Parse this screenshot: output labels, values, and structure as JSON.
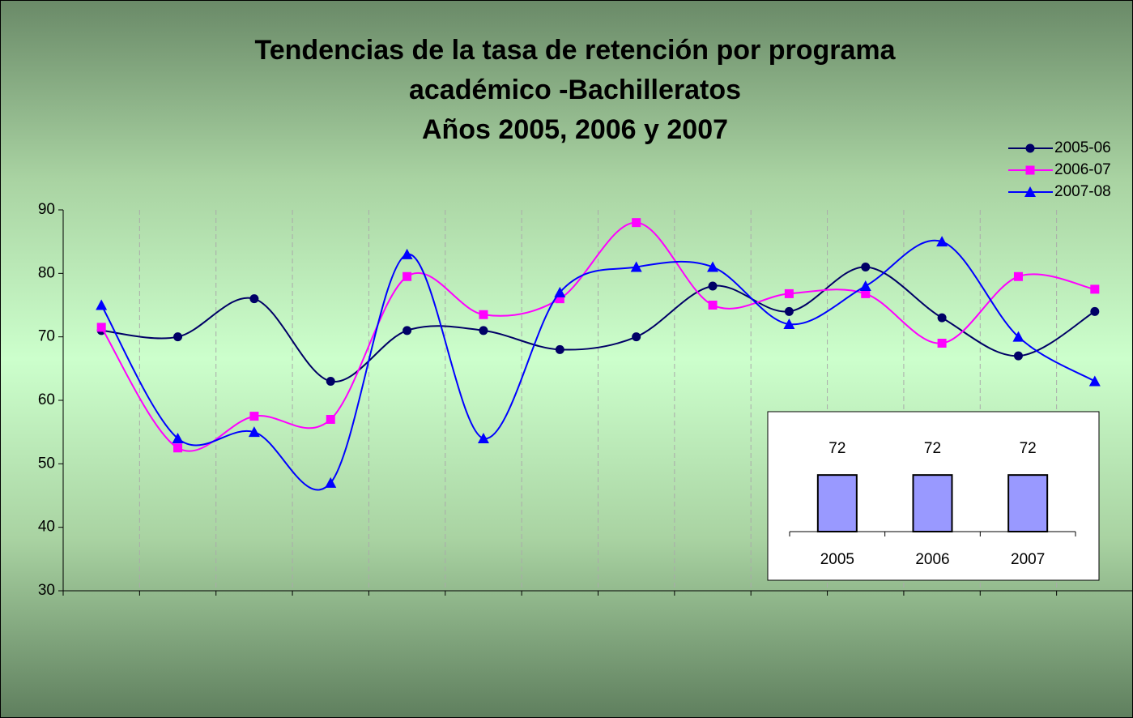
{
  "chart_data": [
    {
      "type": "line",
      "title": [
        "Tendencias de la tasa de retención por programa",
        "académico -Bachilleratos",
        "Años 2005, 2006 y 2007"
      ],
      "categories": [
        null,
        null,
        null,
        null,
        null,
        null,
        null,
        null,
        null,
        null,
        null,
        null,
        null,
        null
      ],
      "series": [
        {
          "name": "2005-06",
          "color": "#000066",
          "marker": "circle",
          "values": [
            71,
            70,
            76,
            63,
            71,
            71,
            68,
            70,
            78,
            74,
            81,
            73,
            67,
            74
          ]
        },
        {
          "name": "2006-07",
          "color": "#ff00ff",
          "marker": "square",
          "values": [
            71.5,
            52.5,
            57.5,
            57,
            79.5,
            73.5,
            76,
            88,
            75,
            76.8,
            76.8,
            69,
            79.5,
            77.5
          ]
        },
        {
          "name": "2007-08",
          "color": "#0000ff",
          "marker": "triangle",
          "values": [
            75,
            54,
            55,
            47,
            83,
            54,
            77,
            81,
            81,
            72,
            78,
            85,
            70,
            63
          ]
        }
      ],
      "ylim": [
        30,
        90
      ],
      "yticks": [
        30,
        40,
        50,
        60,
        70,
        80,
        90
      ],
      "grid": "vertical-dashed",
      "smooth": true,
      "legend": "top-right"
    },
    {
      "type": "bar",
      "categories": [
        "2005",
        "2006",
        "2007"
      ],
      "values": [
        72,
        72,
        72
      ],
      "color": "#9999ff"
    }
  ]
}
